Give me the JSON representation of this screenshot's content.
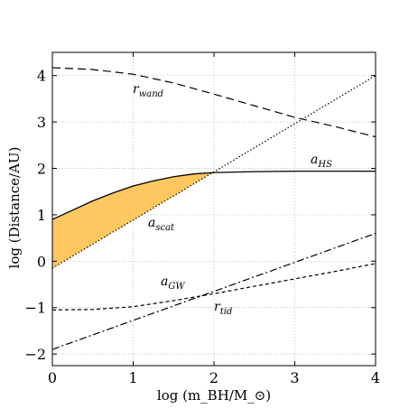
{
  "chart_data": {
    "type": "line",
    "title": "",
    "xlabel": "log (m_BH/M_⊙)",
    "ylabel": "log (Distance/AU)",
    "xlim": [
      0,
      4
    ],
    "ylim": [
      -2.25,
      4.5
    ],
    "grid": true,
    "x_ticks": [
      0,
      1,
      2,
      3,
      4
    ],
    "y_ticks": [
      -2,
      -1,
      0,
      1,
      2,
      3,
      4
    ],
    "x_tick_labels": [
      "0",
      "1",
      "2",
      "3",
      "4"
    ],
    "y_tick_labels": [
      "−2",
      "−1",
      "0",
      "1",
      "2",
      "3",
      "4"
    ],
    "series": [
      {
        "name": "r_wand",
        "label_main": "r",
        "label_sub": "wand",
        "style": "dashed-long",
        "x": [
          0,
          0.5,
          1,
          1.5,
          2,
          2.5,
          3,
          3.5,
          4
        ],
        "y": [
          4.17,
          4.13,
          4.03,
          3.84,
          3.6,
          3.35,
          3.1,
          2.9,
          2.68
        ]
      },
      {
        "name": "a_HS",
        "label_main": "a",
        "label_sub": "HS",
        "style": "solid",
        "x": [
          0,
          0.25,
          0.5,
          0.75,
          1,
          1.25,
          1.5,
          1.75,
          2,
          2.5,
          3,
          3.5,
          4
        ],
        "y": [
          0.9,
          1.1,
          1.3,
          1.47,
          1.62,
          1.73,
          1.82,
          1.88,
          1.91,
          1.93,
          1.94,
          1.94,
          1.94
        ]
      },
      {
        "name": "a_scat",
        "label_main": "a",
        "label_sub": "scat",
        "style": "dotted",
        "x": [
          0,
          4
        ],
        "y": [
          -0.15,
          4.0
        ]
      },
      {
        "name": "a_GW",
        "label_main": "a",
        "label_sub": "GW",
        "style": "dash-dot",
        "x": [
          0,
          4
        ],
        "y": [
          -1.9,
          0.6
        ]
      },
      {
        "name": "r_tid",
        "label_main": "r",
        "label_sub": "tid",
        "style": "dashed-short",
        "x": [
          0,
          0.5,
          1,
          1.5,
          2,
          2.5,
          3,
          3.5,
          4
        ],
        "y": [
          -1.05,
          -1.04,
          -0.98,
          -0.85,
          -0.7,
          -0.54,
          -0.38,
          -0.22,
          -0.05
        ]
      }
    ],
    "shaded_region": {
      "between": [
        "a_HS",
        "a_scat"
      ],
      "x_range": [
        0,
        2
      ],
      "color": "#ffc75f"
    }
  }
}
